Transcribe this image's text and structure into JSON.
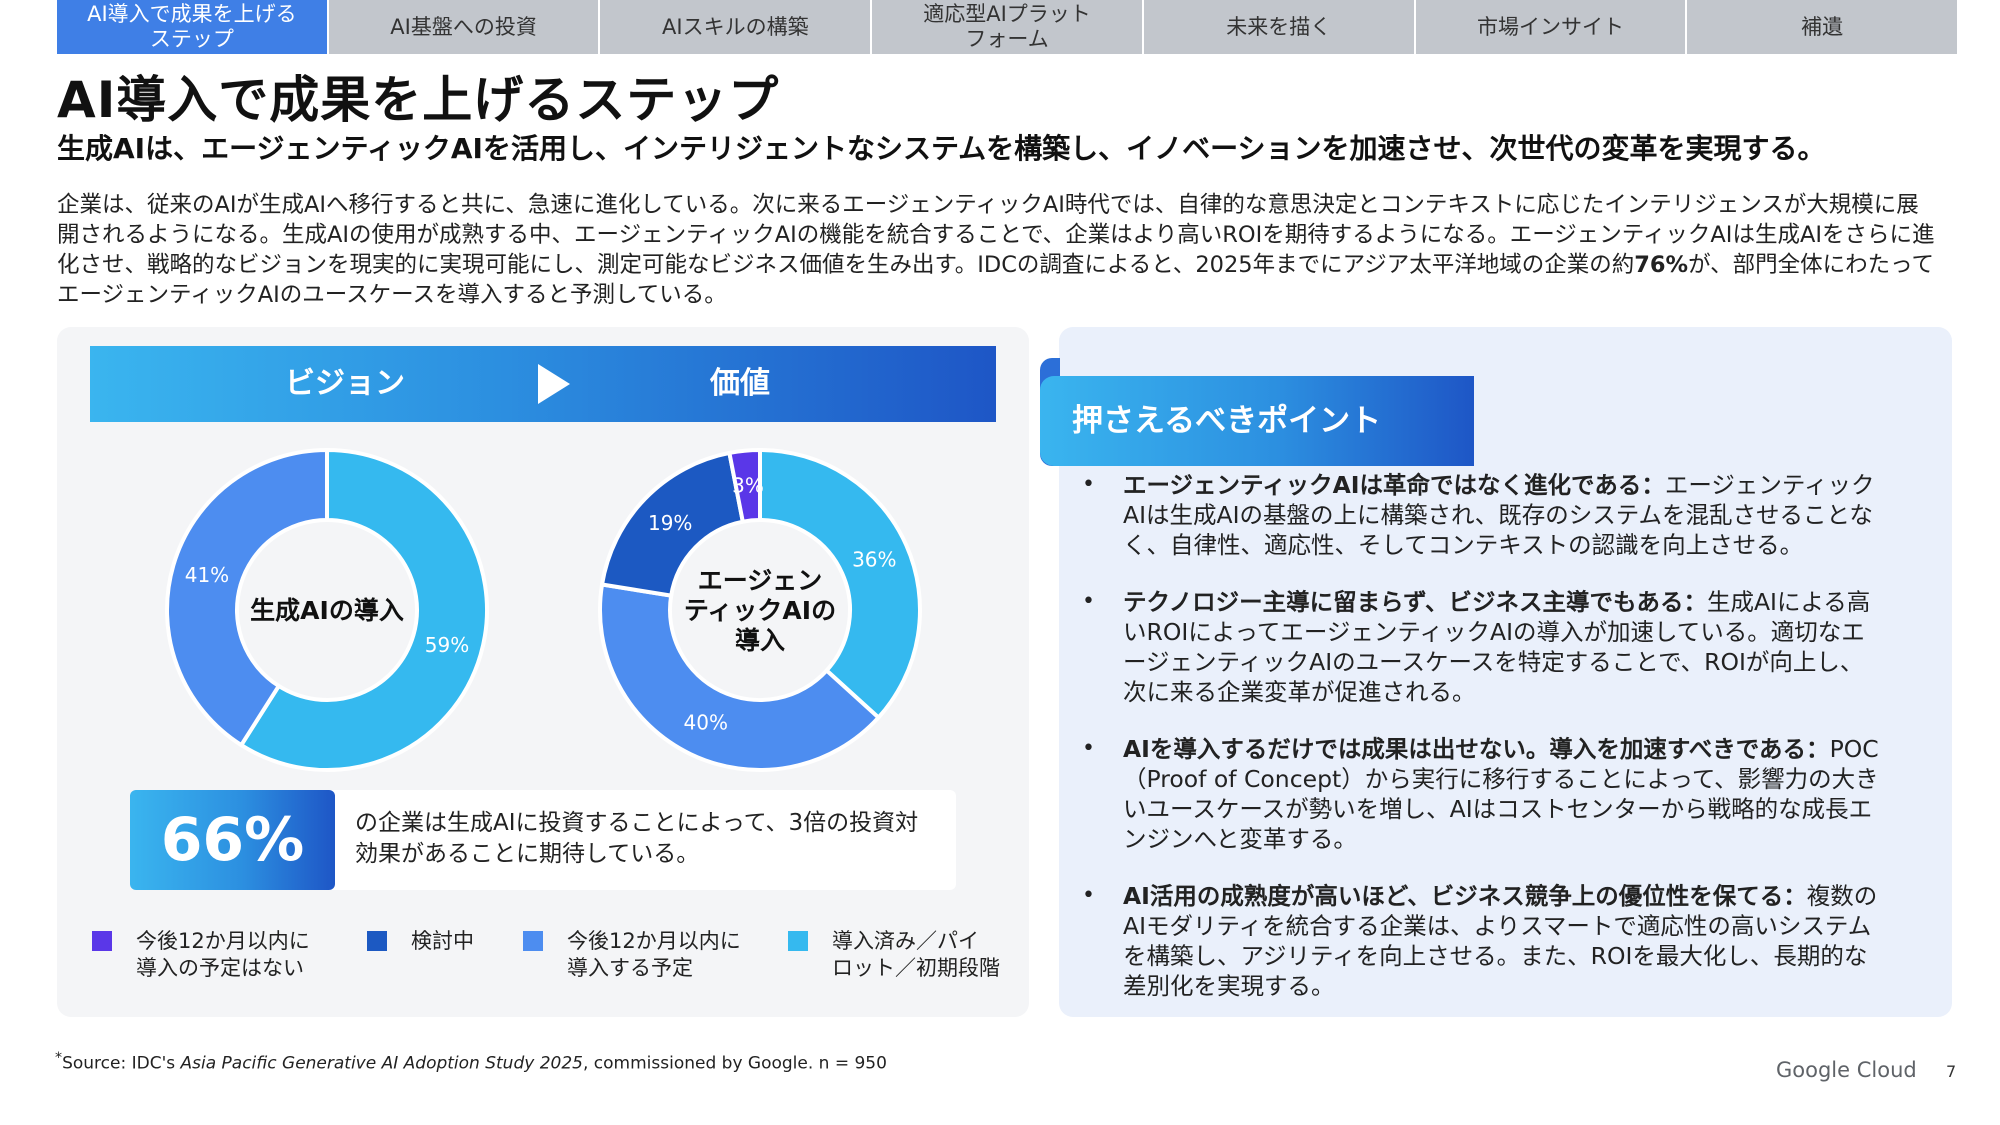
{
  "tabs": [
    {
      "label": "AI導入で成果を上げる\nステップ",
      "active": true
    },
    {
      "label": "AI基盤への投資"
    },
    {
      "label": "AIスキルの構築"
    },
    {
      "label": "適応型AIプラット\nフォーム"
    },
    {
      "label": "未来を描く"
    },
    {
      "label": "市場インサイト"
    },
    {
      "label": "補遺"
    }
  ],
  "title": "AI導入で成果を上げるステップ",
  "subtitle": "生成AIは、エージェンティックAIを活用し、インテリジェントなシステムを構築し、イノベーションを加速させ、次世代の変革を実現する。",
  "intro": {
    "before": "企業は、従来のAIが生成AIへ移行すると共に、急速に進化している。次に来るエージェンティックAI時代では、自律的な意思決定とコンテキストに応じたインテリジェンスが大規模に展開されるようになる。生成AIの使用が成熟する中、エージェンティックAIの機能を統合することで、企業はより高いROIを期待するようになる。エージェンティックAIは生成AIをさらに進化させ、戦略的なビジョンを現実的に実現可能にし、測定可能なビジネス価値を生み出す。IDCの調査によると、2025年までにアジア太平洋地域の企業の約",
    "bold": "76%",
    "after": "が、部門全体にわたってエージェンティックAIのユースケースを導入すると予測している。"
  },
  "vision_bar": {
    "left": "ビジョン",
    "right": "価値"
  },
  "chart_data": [
    {
      "type": "pie",
      "title": "生成AIの導入",
      "categories": [
        "導入済み／パイロット／初期段階",
        "今後12か月以内に導入する予定"
      ],
      "values": [
        59,
        41
      ],
      "labels": [
        "59%",
        "41%"
      ],
      "colors": [
        "#35b9ef",
        "#4d8df0"
      ]
    },
    {
      "type": "pie",
      "title": "エージェン\nティックAIの\n導入",
      "categories": [
        "導入済み／パイロット／初期段階",
        "今後12か月以内に導入する予定",
        "検討中",
        "今後12か月以内に導入の予定はない"
      ],
      "values": [
        36,
        40,
        19,
        3
      ],
      "labels": [
        "36%",
        "40%",
        "19%",
        "3%"
      ],
      "colors": [
        "#35b9ef",
        "#4d8df0",
        "#1c59c2",
        "#5a37e8"
      ]
    }
  ],
  "stat": {
    "value": "66%",
    "text": "の企業は生成AIに投資することによって、3倍の投資対効果があることに期待している。"
  },
  "legend": [
    {
      "label": "今後12か月以内に\n導入の予定はない",
      "color": "#5a37e8"
    },
    {
      "label": "検討中",
      "color": "#1c59c2"
    },
    {
      "label": "今後12か月以内に\n導入する予定",
      "color": "#4d8df0"
    },
    {
      "label": "導入済み／パイ\nロット／初期段階",
      "color": "#35b9ef"
    }
  ],
  "points_title": "押さえるべきポイント",
  "points": [
    {
      "bold": "エージェンティックAIは革命ではなく進化である：",
      "text": "エージェンティックAIは生成AIの基盤の上に構築され、既存のシステムを混乱させることなく、自律性、適応性、そしてコンテキストの認識を向上させる。"
    },
    {
      "bold": "テクノロジー主導に留まらず、ビジネス主導でもある：",
      "text": "生成AIによる高いROIによってエージェンティックAIの導入が加速している。適切なエージェンティックAIのユースケースを特定することで、ROIが向上し、次に来る企業変革が促進される。"
    },
    {
      "bold": "AIを導入するだけでは成果は出せない。導入を加速すべきである：",
      "text": "POC（Proof of Concept）から実行に移行することによって、影響力の大きいユースケースが勢いを増し、AIはコストセンターから戦略的な成長エンジンへと変革する。"
    },
    {
      "bold": "AI活用の成熟度が高いほど、ビジネス競争上の優位性を保てる：",
      "text": "複数のAIモダリティを統合する企業は、よりスマートで適応性の高いシステムを構築し、アジリティを向上させる。また、ROIを最大化し、長期的な差別化を実現する。"
    }
  ],
  "footnote": {
    "sup": "*",
    "prefix": "Source: IDC's ",
    "italic": "Asia Pacific Generative AI Adoption Study 2025",
    "suffix": ", commissioned by Google. n = 950"
  },
  "brand": "Google Cloud",
  "page_number": "7",
  "colors": {
    "accent": "#3f7fe6",
    "tab_inactive": "#c2c6cc",
    "panel_left": "#f4f5f7",
    "panel_right": "#eaf0fb"
  }
}
